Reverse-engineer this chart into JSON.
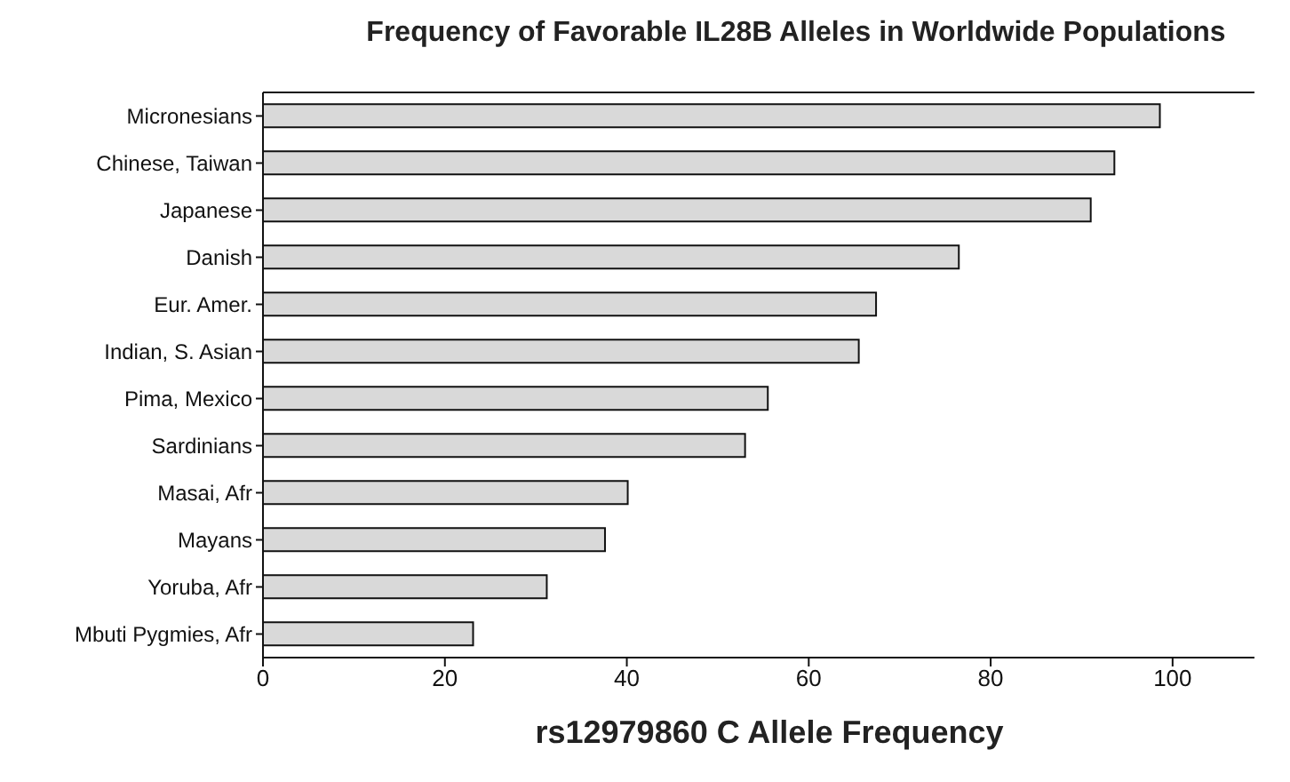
{
  "chart_data": {
    "type": "bar",
    "orientation": "horizontal",
    "title": "Frequency of Favorable IL28B Alleles in Worldwide Populations",
    "xlabel": "rs12979860 C Allele Frequency",
    "categories": [
      "Micronesians",
      "Chinese, Taiwan",
      "Japanese",
      "Danish",
      "Eur. Amer.",
      "Indian, S. Asian",
      "Pima, Mexico",
      "Sardinians",
      "Masai, Afr",
      "Mayans",
      "Yoruba, Afr",
      "Mbuti Pygmies, Afr"
    ],
    "values": [
      98.6,
      93.6,
      91.0,
      76.5,
      67.4,
      65.5,
      55.5,
      53.0,
      40.1,
      37.6,
      31.2,
      23.1
    ],
    "color": "#d9d9d9",
    "xlim": [
      0,
      109
    ],
    "xticks": [
      0,
      20,
      40,
      60,
      80,
      100
    ],
    "grid": false,
    "legend": false
  }
}
